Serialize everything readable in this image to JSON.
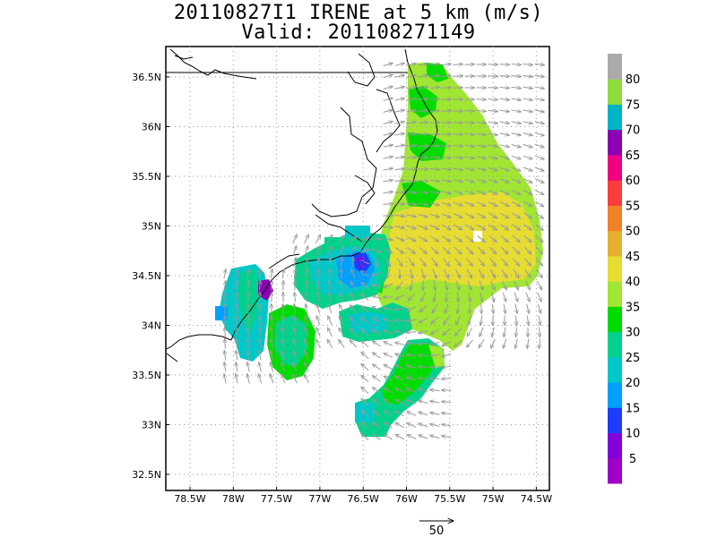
{
  "title": {
    "line1": "20110827I1 IRENE at 5 km (m/s)",
    "line2": "Valid: 201108271149"
  },
  "map": {
    "lat_labels": [
      "36.5N",
      "36N",
      "35.5N",
      "35N",
      "34.5N",
      "34N",
      "33.5N",
      "33N",
      "32.5N"
    ],
    "lon_labels": [
      "78.5W",
      "78W",
      "77.5W",
      "77W",
      "76.5W",
      "76W",
      "75.5W",
      "75W",
      "74.5W"
    ],
    "lat_values": [
      36.5,
      36.0,
      35.5,
      35.0,
      34.5,
      34.0,
      33.5,
      33.0,
      32.5
    ],
    "lon_values": [
      -78.5,
      -78.0,
      -77.5,
      -77.0,
      -76.5,
      -76.0,
      -75.5,
      -75.0,
      -74.5
    ],
    "gridlines": "dotted",
    "coastline_color": "#000000",
    "vector_color": "#999999",
    "storm_center": {
      "lat": 34.68,
      "lon": -76.5
    }
  },
  "colorbar": {
    "labels": [
      "5",
      "10",
      "15",
      "20",
      "25",
      "30",
      "35",
      "40",
      "45",
      "50",
      "55",
      "60",
      "65",
      "70",
      "75",
      "80"
    ],
    "colors": [
      "#a000c8",
      "#8200dc",
      "#1e3cff",
      "#00a0ff",
      "#00c8c8",
      "#00d28c",
      "#00dc00",
      "#a0e632",
      "#e6dc32",
      "#e6af2d",
      "#f08228",
      "#fa3c3c",
      "#f00082",
      "#8c00b4",
      "#00b4c8",
      "#90dc3c",
      "#aaaaaa"
    ],
    "position": "right"
  },
  "reference_vector": {
    "label": "50",
    "value": 50
  }
}
